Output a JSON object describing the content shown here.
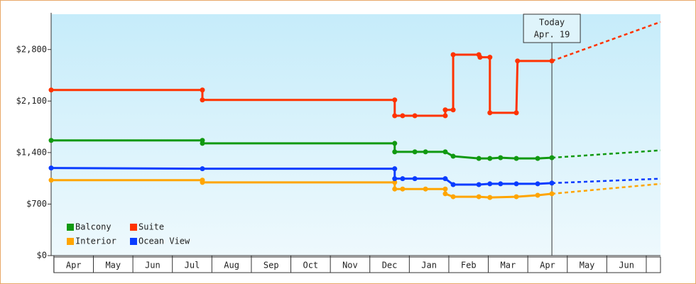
{
  "chart_data": {
    "type": "line",
    "xlim": [
      -0.07,
      15.36
    ],
    "xticks": [
      {
        "value": 0,
        "label": "Apr"
      },
      {
        "value": 1,
        "label": "May"
      },
      {
        "value": 2,
        "label": "Jun"
      },
      {
        "value": 3,
        "label": "Jul"
      },
      {
        "value": 4,
        "label": "Aug"
      },
      {
        "value": 5,
        "label": "Sep"
      },
      {
        "value": 6,
        "label": "Oct"
      },
      {
        "value": 7,
        "label": "Nov"
      },
      {
        "value": 8,
        "label": "Dec"
      },
      {
        "value": 9,
        "label": "Jan"
      },
      {
        "value": 10,
        "label": "Feb"
      },
      {
        "value": 11,
        "label": "Mar"
      },
      {
        "value": 12,
        "label": "Apr"
      },
      {
        "value": 13,
        "label": "May"
      },
      {
        "value": 14,
        "label": "Jun"
      },
      {
        "value": 15
      }
    ],
    "ylim": [
      0,
      3280
    ],
    "yticks": [
      {
        "value": 0,
        "label": "$0"
      },
      {
        "value": 700,
        "label": "$700"
      },
      {
        "value": 1400,
        "label": "$1,400"
      },
      {
        "value": 2100,
        "label": "$2,100"
      },
      {
        "value": 2800,
        "label": "$2,800"
      }
    ],
    "today": {
      "x": 12.61,
      "lines": [
        "Today",
        "Apr. 19"
      ]
    },
    "series": [
      {
        "name": "Balcony",
        "color": "#119911",
        "x": [
          -0.07,
          3.76,
          3.76,
          8.63,
          8.63,
          9.14,
          9.41,
          9.91,
          10.11,
          10.76,
          11.04,
          11.31,
          11.71,
          12.25,
          12.61
        ],
        "values": [
          1565,
          1565,
          1525,
          1525,
          1410,
          1410,
          1410,
          1410,
          1350,
          1320,
          1320,
          1330,
          1320,
          1320,
          1330
        ],
        "forecast": {
          "x": [
            12.61,
            15.36
          ],
          "values": [
            1330,
            1430
          ]
        }
      },
      {
        "name": "Suite",
        "color": "#ff3300",
        "x": [
          -0.07,
          3.76,
          3.76,
          8.63,
          8.63,
          8.83,
          9.14,
          9.91,
          9.91,
          10.11,
          10.11,
          10.76,
          10.79,
          11.04,
          11.04,
          11.71,
          11.74,
          12.61
        ],
        "values": [
          2250,
          2250,
          2115,
          2115,
          1900,
          1900,
          1900,
          1900,
          1980,
          1980,
          2730,
          2730,
          2695,
          2695,
          1940,
          1940,
          2645,
          2645
        ],
        "forecast": {
          "x": [
            12.61,
            15.36
          ],
          "values": [
            2645,
            3175
          ]
        }
      },
      {
        "name": "Interior",
        "color": "#ffa500",
        "x": [
          -0.07,
          3.76,
          3.76,
          8.63,
          8.63,
          8.83,
          9.41,
          9.91,
          9.91,
          10.11,
          10.76,
          11.04,
          11.71,
          12.25,
          12.61
        ],
        "values": [
          1025,
          1025,
          995,
          995,
          905,
          905,
          905,
          905,
          840,
          800,
          800,
          790,
          800,
          820,
          840
        ],
        "forecast": {
          "x": [
            12.61,
            15.36
          ],
          "values": [
            840,
            975
          ]
        }
      },
      {
        "name": "Ocean View",
        "color": "#0a3cff",
        "x": [
          -0.07,
          3.76,
          8.63,
          8.63,
          8.83,
          9.14,
          9.91,
          10.11,
          10.76,
          11.04,
          11.31,
          11.71,
          12.25,
          12.61
        ],
        "values": [
          1190,
          1180,
          1180,
          1045,
          1045,
          1045,
          1045,
          965,
          965,
          975,
          975,
          975,
          975,
          985
        ],
        "forecast": {
          "x": [
            12.61,
            15.36
          ],
          "values": [
            985,
            1045
          ]
        }
      }
    ]
  }
}
